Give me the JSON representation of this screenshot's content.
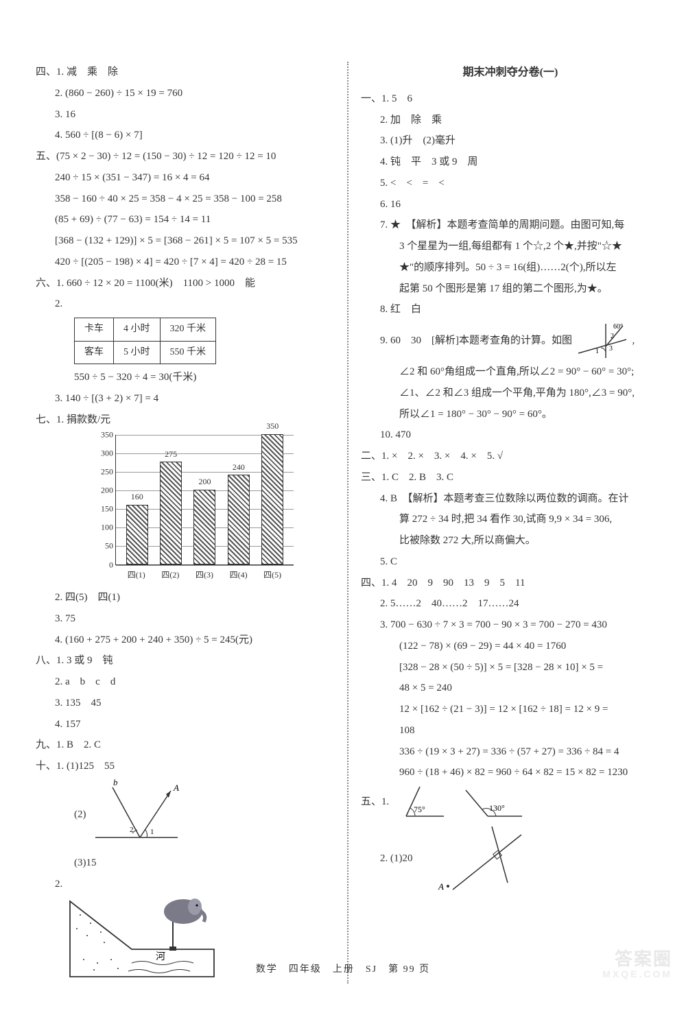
{
  "footer": "数学　四年级　上册　SJ　第 99 页",
  "watermark": {
    "line1": "答案圈",
    "line2": "MXQE.COM"
  },
  "left": {
    "l01": "四、1. 减　乘　除",
    "l02": "2. (860 − 260) ÷ 15 × 19 = 760",
    "l03": "3. 16",
    "l04": "4. 560 ÷ [(8 − 6) × 7]",
    "l05": "五、(75 × 2 − 30) ÷ 12 = (150 − 30) ÷ 12 = 120 ÷ 12 = 10",
    "l06": "240 ÷ 15 × (351 − 347) = 16 × 4 = 64",
    "l07": "358 − 160 ÷ 40 × 25 = 358 − 4 × 25 = 358 − 100 = 258",
    "l08": "(85 + 69) ÷ (77 − 63) = 154 ÷ 14 = 11",
    "l09": "[368 − (132 + 129)] × 5 = [368 − 261] × 5 = 107 × 5 = 535",
    "l10": "420 ÷ [(205 − 198) × 4] = 420 ÷ [7 × 4] = 420 ÷ 28 = 15",
    "l11": "六、1. 660 ÷ 12 × 20 = 1100(米)　1100 > 1000　能",
    "l12": "2.",
    "table": {
      "rows": [
        [
          "卡车",
          "4 小时",
          "320 千米"
        ],
        [
          "客车",
          "5 小时",
          "550 千米"
        ]
      ]
    },
    "l13": "550 ÷ 5 − 320 ÷ 4 = 30(千米)",
    "l14": "3. 140 ÷ [(3 + 2) × 7] = 4",
    "l15": "七、1. 捐款数/元",
    "chart": {
      "ymax": 350,
      "ystep": 50,
      "categories": [
        "四(1)",
        "四(2)",
        "四(3)",
        "四(4)",
        "四(5)"
      ],
      "values": [
        160,
        275,
        200,
        240,
        350
      ],
      "bar_color": "#666666",
      "grid_color": "#999999",
      "border_color": "#333333"
    },
    "l16": "2. 四(5)　四(1)",
    "l17": "3. 75",
    "l18": "4. (160 + 275 + 200 + 240 + 350) ÷ 5 = 245(元)",
    "l19": "八、1. 3 或 9　钝",
    "l20": "2. a　b　c　d",
    "l21": "3. 135　45",
    "l22": "4. 157",
    "l23": "九、1. B　2. C",
    "l24": "十、1. (1)125　55",
    "l25": "(2)",
    "l26": "(3)15",
    "l27": "2.",
    "river": "河"
  },
  "right": {
    "title": "期末冲刺夺分卷(一)",
    "r01": "一、1. 5　6",
    "r02": "2. 加　除　乘",
    "r03": "3. (1)升　(2)毫升",
    "r04": "4. 钝　平　3 或 9　周",
    "r05": "5. <　<　=　<",
    "r06": "6. 16",
    "r07": "7. ★　【解析】本题考查简单的周期问题。由图可知,每",
    "r07b": "3 个星星为一组,每组都有 1 个☆,2 个★,并按\"☆★",
    "r07c": "★\"的顺序排列。50 ÷ 3 = 16(组)……2(个),所以左",
    "r07d": "起第 50 个图形是第 17 组的第二个图形,为★。",
    "r08": "8. 红　白",
    "r09": "9. 60　30　[解析]本题考查角的计算。如图",
    "r09b": "∠2 和 60°角组成一个直角,所以∠2 = 90° − 60° = 30°;",
    "r09c": "∠1、∠2 和∠3 组成一个平角,平角为 180°,∠3 = 90°,",
    "r09d": "所以∠1 = 180° − 30° − 90° = 60°。",
    "r10": "10. 470",
    "r11": "二、1. ×　2. ×　3. ×　4. ×　5. √",
    "r12": "三、1. C　2. B　3. C",
    "r13": "4. B　【解析】本题考查三位数除以两位数的调商。在计",
    "r13b": "算 272 ÷ 34 时,把 34 看作 30,试商 9,9 × 34 = 306,",
    "r13c": "比被除数 272 大,所以商偏大。",
    "r14": "5. C",
    "r15": "四、1. 4　20　9　90　13　9　5　11",
    "r16": "2. 5……2　40……2　17……24",
    "r17": "3. 700 − 630 ÷ 7 × 3 = 700 − 90 × 3 = 700 − 270 = 430",
    "r17b": "(122 − 78) × (69 − 29) = 44 × 40 = 1760",
    "r17c": "[328 − 28 × (50 ÷ 5)] × 5 = [328 − 28 × 10] × 5 =",
    "r17d": "48 × 5 = 240",
    "r17e": "12 × [162 ÷ (21 − 3)] = 12 × [162 ÷ 18] = 12 × 9 =",
    "r17f": "108",
    "r17g": "336 ÷ (19 × 3 + 27) = 336 ÷ (57 + 27) = 336 ÷ 84 = 4",
    "r17h": "960 ÷ (18 + 46) × 82 = 960 ÷ 64 × 82 = 15 × 82 = 1230",
    "r18": "五、1.",
    "r18_ang1": "75°",
    "r18_ang2": "130°",
    "r19": "2. (1)20",
    "r19_a": "A"
  }
}
